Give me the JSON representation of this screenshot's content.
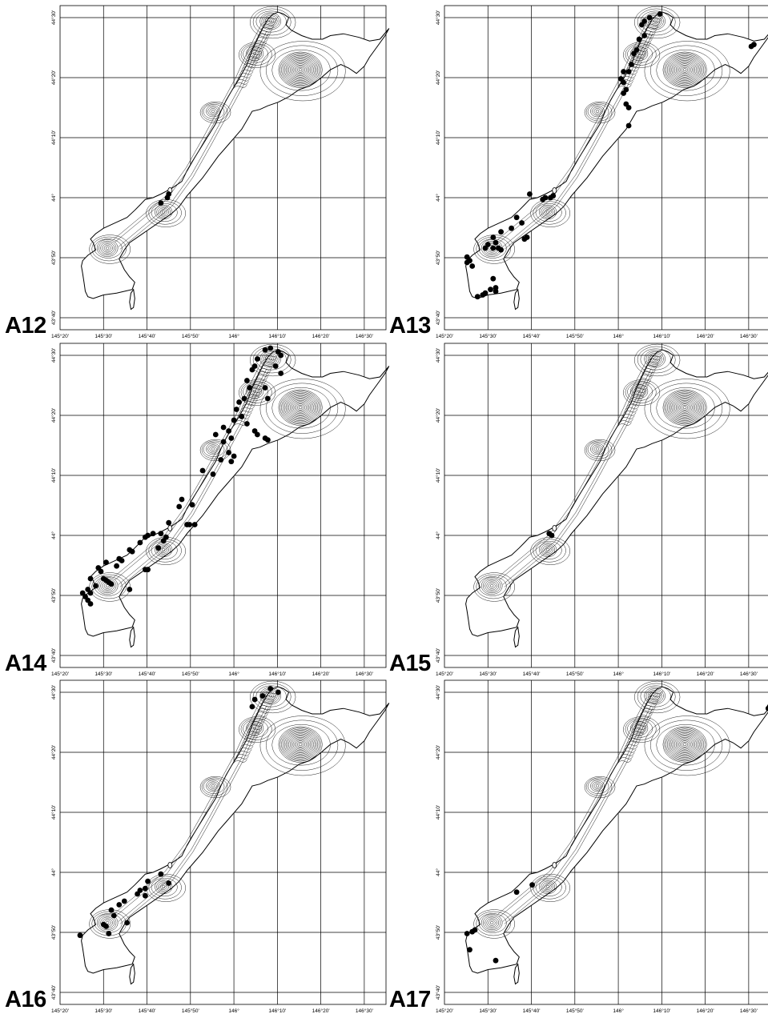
{
  "axes": {
    "lon_labels": [
      "145°20'",
      "145°30'",
      "145°40'",
      "145°50'",
      "146°",
      "146°10'",
      "146°20'",
      "146°30'"
    ],
    "lat_labels": [
      "44°30'",
      "44°20'",
      "44°10'",
      "44°",
      "43°50'",
      "43°40'"
    ],
    "lon_range": [
      145.3333,
      146.5833
    ],
    "lat_range": [
      43.6333,
      44.5333
    ]
  },
  "style": {
    "point_color": "#000000",
    "line_color": "#000000",
    "background": "#ffffff"
  },
  "panels": [
    {
      "label": "A12",
      "points": [
        [
          145.72,
          43.985
        ],
        [
          145.745,
          44.0
        ],
        [
          145.75,
          44.01
        ]
      ]
    },
    {
      "label": "A13",
      "points": [
        [
          146.16,
          44.51
        ],
        [
          146.12,
          44.5
        ],
        [
          146.1,
          44.49
        ],
        [
          146.09,
          44.48
        ],
        [
          146.1,
          44.45
        ],
        [
          146.08,
          44.44
        ],
        [
          146.07,
          44.41
        ],
        [
          146.06,
          44.4
        ],
        [
          146.05,
          44.37
        ],
        [
          146.04,
          44.35
        ],
        [
          146.02,
          44.35
        ],
        [
          146.01,
          44.33
        ],
        [
          146.02,
          44.32
        ],
        [
          146.03,
          44.3
        ],
        [
          146.02,
          44.29
        ],
        [
          146.03,
          44.26
        ],
        [
          146.04,
          44.25
        ],
        [
          146.04,
          44.2
        ],
        [
          146.51,
          44.42
        ],
        [
          146.52,
          44.425
        ],
        [
          145.66,
          44.01
        ],
        [
          145.71,
          43.995
        ],
        [
          145.72,
          44.0
        ],
        [
          145.74,
          44.0
        ],
        [
          145.75,
          44.005
        ],
        [
          145.61,
          43.945
        ],
        [
          145.63,
          43.93
        ],
        [
          145.59,
          43.915
        ],
        [
          145.55,
          43.905
        ],
        [
          145.52,
          43.89
        ],
        [
          145.53,
          43.875
        ],
        [
          145.5,
          43.87
        ],
        [
          145.49,
          43.86
        ],
        [
          145.52,
          43.86
        ],
        [
          145.54,
          43.86
        ],
        [
          145.55,
          43.855
        ],
        [
          145.64,
          43.885
        ],
        [
          145.65,
          43.89
        ],
        [
          145.42,
          43.835
        ],
        [
          145.43,
          43.825
        ],
        [
          145.42,
          43.82
        ],
        [
          145.44,
          43.81
        ],
        [
          145.52,
          43.775
        ],
        [
          145.53,
          43.75
        ],
        [
          145.51,
          43.745
        ],
        [
          145.53,
          43.74
        ],
        [
          145.48,
          43.73
        ],
        [
          145.46,
          43.725
        ],
        [
          145.49,
          43.735
        ]
      ]
    },
    {
      "label": "A14",
      "points": [
        [
          146.14,
          44.52
        ],
        [
          146.12,
          44.515
        ],
        [
          146.17,
          44.51
        ],
        [
          146.18,
          44.5
        ],
        [
          146.09,
          44.49
        ],
        [
          146.08,
          44.47
        ],
        [
          146.07,
          44.46
        ],
        [
          146.16,
          44.47
        ],
        [
          146.18,
          44.45
        ],
        [
          146.05,
          44.43
        ],
        [
          146.06,
          44.41
        ],
        [
          146.12,
          44.41
        ],
        [
          146.13,
          44.38
        ],
        [
          146.04,
          44.38
        ],
        [
          146.02,
          44.37
        ],
        [
          146.01,
          44.35
        ],
        [
          146.03,
          44.33
        ],
        [
          146.0,
          44.32
        ],
        [
          146.05,
          44.31
        ],
        [
          146.08,
          44.29
        ],
        [
          146.09,
          44.28
        ],
        [
          146.12,
          44.27
        ],
        [
          146.13,
          44.265
        ],
        [
          145.96,
          44.3
        ],
        [
          145.98,
          44.29
        ],
        [
          145.93,
          44.28
        ],
        [
          145.99,
          44.27
        ],
        [
          145.96,
          44.26
        ],
        [
          145.98,
          44.23
        ],
        [
          146.0,
          44.22
        ],
        [
          145.95,
          44.21
        ],
        [
          145.99,
          44.205
        ],
        [
          145.88,
          44.18
        ],
        [
          145.92,
          44.17
        ],
        [
          145.8,
          44.1
        ],
        [
          145.84,
          44.085
        ],
        [
          145.79,
          44.08
        ],
        [
          145.75,
          44.035
        ],
        [
          145.82,
          44.03
        ],
        [
          145.83,
          44.03
        ],
        [
          145.85,
          44.03
        ],
        [
          145.72,
          44.005
        ],
        [
          145.69,
          44.005
        ],
        [
          145.67,
          44.0
        ],
        [
          145.66,
          43.995
        ],
        [
          145.74,
          43.995
        ],
        [
          145.73,
          43.985
        ],
        [
          145.64,
          43.98
        ],
        [
          145.6,
          43.96
        ],
        [
          145.61,
          43.955
        ],
        [
          145.71,
          43.965
        ],
        [
          145.56,
          43.935
        ],
        [
          145.57,
          43.93
        ],
        [
          145.51,
          43.925
        ],
        [
          145.55,
          43.915
        ],
        [
          145.48,
          43.91
        ],
        [
          145.49,
          43.9
        ],
        [
          145.45,
          43.88
        ],
        [
          145.5,
          43.88
        ],
        [
          145.51,
          43.875
        ],
        [
          145.52,
          43.87
        ],
        [
          145.53,
          43.865
        ],
        [
          145.47,
          43.86
        ],
        [
          145.44,
          43.85
        ],
        [
          145.45,
          43.84
        ],
        [
          145.42,
          43.84
        ],
        [
          145.6,
          43.85
        ],
        [
          145.43,
          43.83
        ],
        [
          145.44,
          43.82
        ],
        [
          145.45,
          43.81
        ],
        [
          145.66,
          43.905
        ],
        [
          145.67,
          43.905
        ]
      ]
    },
    {
      "label": "A15",
      "points": [
        [
          145.735,
          44.005
        ],
        [
          145.745,
          44.0
        ]
      ]
    },
    {
      "label": "A16",
      "points": [
        [
          146.14,
          44.51
        ],
        [
          146.17,
          44.5
        ],
        [
          146.08,
          44.48
        ],
        [
          146.07,
          44.46
        ],
        [
          146.11,
          44.49
        ],
        [
          145.72,
          43.995
        ],
        [
          145.75,
          43.97
        ],
        [
          145.67,
          43.975
        ],
        [
          145.66,
          43.955
        ],
        [
          145.64,
          43.95
        ],
        [
          145.63,
          43.94
        ],
        [
          145.66,
          43.935
        ],
        [
          145.58,
          43.92
        ],
        [
          145.56,
          43.91
        ],
        [
          145.53,
          43.895
        ],
        [
          145.54,
          43.88
        ],
        [
          145.5,
          43.855
        ],
        [
          145.51,
          43.85
        ],
        [
          145.59,
          43.86
        ],
        [
          145.41,
          43.825
        ],
        [
          145.52,
          43.83
        ]
      ]
    },
    {
      "label": "A17",
      "points": [
        [
          146.575,
          44.455
        ],
        [
          146.58,
          44.46
        ],
        [
          145.67,
          43.965
        ],
        [
          145.61,
          43.945
        ],
        [
          145.42,
          43.83
        ],
        [
          145.44,
          43.835
        ],
        [
          145.45,
          43.84
        ],
        [
          145.43,
          43.785
        ],
        [
          145.53,
          43.755
        ]
      ]
    }
  ]
}
